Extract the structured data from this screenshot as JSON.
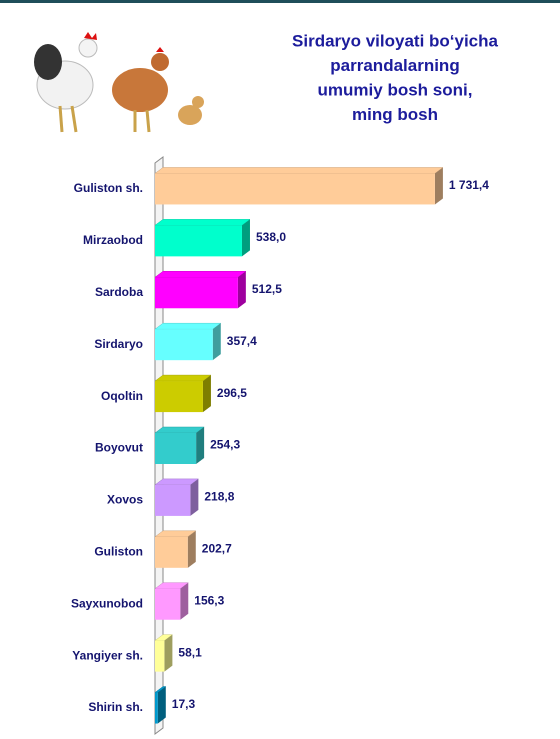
{
  "chart_data": {
    "type": "bar",
    "orientation": "horizontal",
    "title": [
      "Sirdaryo viloyati bo‘yicha",
      "parrandalarning",
      "umumiy bosh soni,",
      "ming bosh"
    ],
    "categories": [
      "Guliston sh.",
      "Mirzaobod",
      "Sardoba",
      "Sirdaryo",
      "Oqoltin",
      "Boyovut",
      "Xovos",
      "Guliston",
      "Sayxunobod",
      "Yangiyer sh.",
      "Shirin sh."
    ],
    "values": [
      1731.4,
      538.0,
      512.5,
      357.4,
      296.5,
      254.3,
      218.8,
      202.7,
      156.3,
      58.1,
      17.3
    ],
    "value_labels": [
      "1 731,4",
      "538,0",
      "512,5",
      "357,4",
      "296,5",
      "254,3",
      "218,8",
      "202,7",
      "156,3",
      "58,1",
      "17,3"
    ],
    "colors": [
      "#FFCC99",
      "#00FFCC",
      "#FF00FF",
      "#66FFFF",
      "#CCCC00",
      "#33CCCC",
      "#CC99FF",
      "#FFCC99",
      "#FF99FF",
      "#FFFF99",
      "#0099CC"
    ],
    "xlim": [
      0,
      1800
    ]
  }
}
